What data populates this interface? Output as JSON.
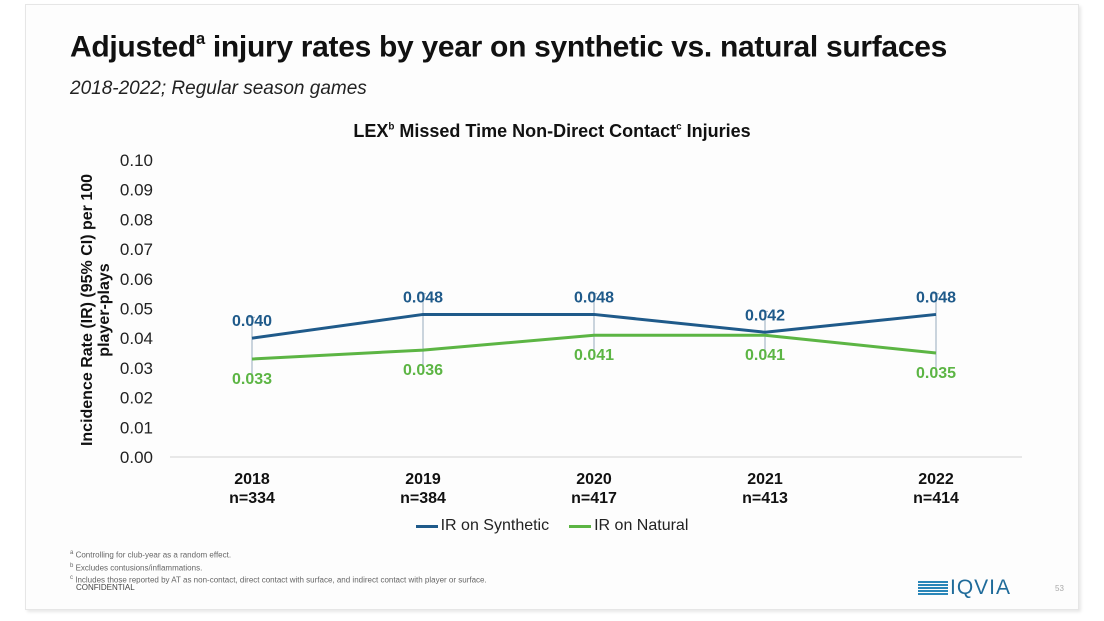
{
  "slide": {
    "title_main": "Adjusted",
    "title_sup": "a",
    "title_rest": " injury rates by year on synthetic vs. natural surfaces",
    "subtitle": "2018-2022; Regular season games",
    "footnotes": [
      {
        "mark": "a",
        "text": "Controlling for club-year as a random effect."
      },
      {
        "mark": "b",
        "text": "Excludes contusions/inflammations."
      },
      {
        "mark": "c",
        "text": "Includes those reported by AT as non-contact, direct contact with surface, and indirect contact with player or surface."
      }
    ],
    "confidential": "CONFIDENTIAL",
    "logo_text": "IQVIA",
    "page_number": "53"
  },
  "chart_data": {
    "type": "line",
    "title_parts": {
      "a": "LEX",
      "sup1": "b",
      "b": " Missed Time Non-Direct Contact",
      "sup2": "c",
      "c": " Injuries"
    },
    "title": "LEXb Missed Time Non-Direct Contactc Injuries",
    "xlabel": "",
    "ylabel": "Incidence Rate (IR) (95% CI) per 100 player-plays",
    "ylabel_lines": [
      "Incidence Rate (IR) (95% CI) per 100",
      "player-plays"
    ],
    "categories": [
      "2018",
      "2019",
      "2020",
      "2021",
      "2022"
    ],
    "category_n": [
      "n=334",
      "n=384",
      "n=417",
      "n=413",
      "n=414"
    ],
    "ylim": [
      0,
      0.1
    ],
    "yticks": [
      "0.00",
      "0.01",
      "0.02",
      "0.03",
      "0.04",
      "0.05",
      "0.06",
      "0.07",
      "0.08",
      "0.09",
      "0.10"
    ],
    "grid": false,
    "legend_position": "bottom",
    "series": [
      {
        "name": "IR on Synthetic",
        "color": "#1f5a8a",
        "values": [
          0.04,
          0.048,
          0.048,
          0.042,
          0.048
        ],
        "labels": [
          "0.040",
          "0.048",
          "0.048",
          "0.042",
          "0.048"
        ],
        "label_position": "above"
      },
      {
        "name": "IR on Natural",
        "color": "#5cb544",
        "values": [
          0.033,
          0.036,
          0.041,
          0.041,
          0.035
        ],
        "labels": [
          "0.033",
          "0.036",
          "0.041",
          "0.041",
          "0.035"
        ],
        "label_position": "below"
      }
    ],
    "error_bar_color": "#a8b8c8"
  }
}
